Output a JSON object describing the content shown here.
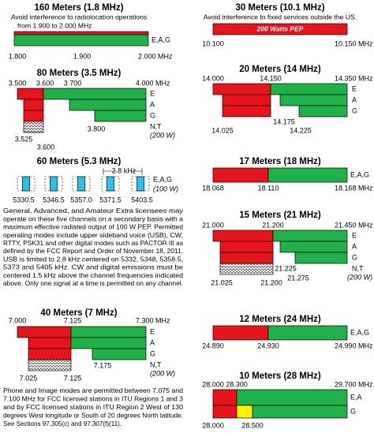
{
  "b160": {
    "title": "160 Meters (1.8 MHz)",
    "note": [
      "Avoid interference to radiolocation operations",
      "from 1.900 to 2.000 MHz"
    ],
    "freqs": [
      "1.800",
      "1.900",
      "2.000 MHz"
    ],
    "classes": "E,A,G"
  },
  "b80": {
    "title": "80 Meters (3.5 MHz)",
    "freqs": [
      "3.500",
      "3.600",
      "3.700",
      "4.000 MHz",
      "3.525",
      "3.600",
      "3.800"
    ],
    "classes": [
      "E",
      "A",
      "G",
      "N,T"
    ],
    "power": "(200 W)"
  },
  "b60": {
    "title": "60 Meters (5.3 MHz)",
    "bandwidth": "2.8 kHz",
    "freqs": [
      "5330.5",
      "5346.5",
      "5357.0",
      "5371.5",
      "5403.5"
    ],
    "classes": "E,A,G",
    "power": "(100 W)",
    "text": [
      "General, Advanced, and Amateur Extra licensees may",
      "operate on these five channels on a secondary basis with a",
      "maximum effective radiated output of 100 W PEP. Permitted",
      "operating modes include upper sideband voice (USB), CW,",
      "RTTY, PSK31 and other digital modes such as PACTOR III as",
      "defined by the FCC Report and Order of November 18, 2011.",
      "USB is limited to 2.8 kHz centered on 5332, 5348, 5358.5,",
      "5373 and 5405 kHz. CW and digital emissions must be",
      "centered 1.5 kHz above the channel frequencies indicated",
      "above. Only one signal at a time is permitted on any channel."
    ]
  },
  "b40": {
    "title": "40 Meters (7 MHz)",
    "freqs": [
      "7.000",
      "7.125",
      "7.300 MHz",
      "7.175",
      "7.025",
      "7.125"
    ],
    "classes": [
      "E",
      "A",
      "G",
      "N,T"
    ],
    "power": "(200 W)",
    "text": [
      "Phone and Image modes are permitted between 7.075 and",
      "7.100 MHz for FCC licensed stations in ITU Regions 1 and 3",
      "and by FCC licensed stations in ITU Region 2 West of 130",
      "degrees West longitude or South of 20 degrees North latitude.",
      "See Sections 97.305(c) and 97.307(f)(11)."
    ]
  },
  "b30": {
    "title": "30 Meters (10.1 MHz)",
    "note": "Avoid interference to fixed services outside the US.",
    "bar_label": "200 Watts PEP",
    "freqs": [
      "10.100",
      "10.150 MHz"
    ]
  },
  "b20": {
    "title": "20 Meters (14 MHz)",
    "freqs": [
      "14.000",
      "14.150",
      "14.350 MHz",
      "14.175",
      "14.025",
      "14.225"
    ],
    "classes": [
      "E",
      "A",
      "G"
    ]
  },
  "b17": {
    "title": "17 Meters (18 MHz)",
    "freqs": [
      "18.068",
      "18.110",
      "18.168 MHz"
    ],
    "classes": "E,A,G"
  },
  "b15": {
    "title": "15 Meters (21 MHz)",
    "freqs": [
      "21.000",
      "21.200",
      "21.450 MHz",
      "21.225",
      "21.275",
      "21.025",
      "21.200"
    ],
    "classes": [
      "E",
      "A",
      "G",
      "N,T"
    ],
    "power": "(200 W)"
  },
  "b12": {
    "title": "12 Meters (24 MHz)",
    "freqs": [
      "24.890",
      "24.930",
      "24.990 MHz"
    ],
    "classes": "E,A,G"
  },
  "b10": {
    "title": "10 Meters (28 MHz)",
    "freqs": [
      "28.000",
      "28.300",
      "29.700 MHz",
      "28.000",
      "28.500"
    ],
    "classes": [
      "E,A",
      "G"
    ]
  }
}
